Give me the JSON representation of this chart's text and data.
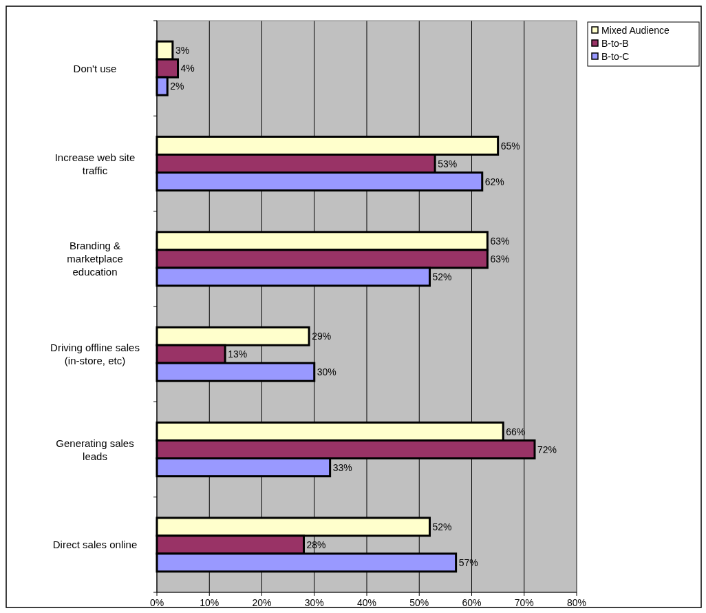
{
  "chart_data": {
    "type": "bar",
    "orientation": "horizontal",
    "categories": [
      "Don't use",
      "Increase web site traffic",
      "Branding & marketplace education",
      "Driving offline sales (in-store, etc)",
      "Generating sales leads",
      "Direct sales online"
    ],
    "series": [
      {
        "name": "Mixed Audience",
        "color": "#ffffcc",
        "values": [
          3,
          65,
          63,
          29,
          66,
          52
        ],
        "value_labels": [
          "3%",
          "65%",
          "63%",
          "29%",
          "66%",
          "52%"
        ]
      },
      {
        "name": "B-to-B",
        "color": "#993366",
        "values": [
          4,
          53,
          63,
          13,
          72,
          28
        ],
        "value_labels": [
          "4%",
          "53%",
          "63%",
          "13%",
          "72%",
          "28%"
        ]
      },
      {
        "name": "B-to-C",
        "color": "#9999ff",
        "values": [
          2,
          62,
          52,
          30,
          33,
          57
        ],
        "value_labels": [
          "2%",
          "62%",
          "52%",
          "30%",
          "33%",
          "57%"
        ]
      }
    ],
    "xlim": [
      0,
      80
    ],
    "xticks": [
      {
        "value": 0,
        "label": "0%"
      },
      {
        "value": 10,
        "label": "10%"
      },
      {
        "value": 20,
        "label": "20%"
      },
      {
        "value": 30,
        "label": "30%"
      },
      {
        "value": 40,
        "label": "40%"
      },
      {
        "value": 50,
        "label": "50%"
      },
      {
        "value": 60,
        "label": "60%"
      },
      {
        "value": 70,
        "label": "70%"
      },
      {
        "value": 80,
        "label": "80%"
      }
    ],
    "grid": "x",
    "legend": "top right"
  }
}
